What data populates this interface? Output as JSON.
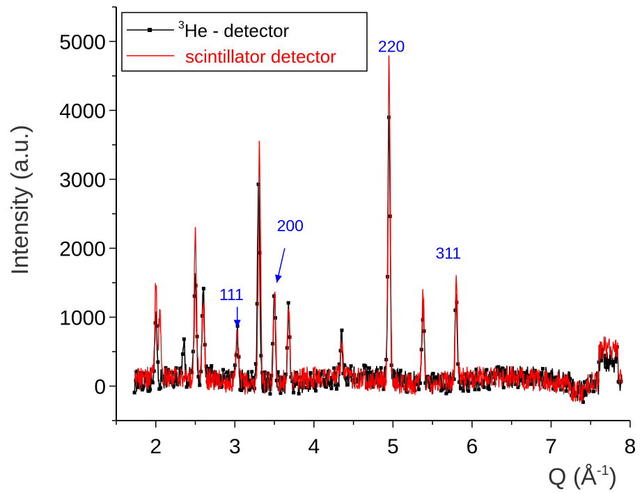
{
  "chart_data": {
    "type": "line",
    "title": "",
    "xlabel": "Q (Å",
    "xlabel_sup": "-1",
    "xlabel_close": ")",
    "ylabel": "Intensity (a.u.)",
    "xlim": [
      1.5,
      8.0
    ],
    "ylim": [
      -500,
      5500
    ],
    "x_ticks": [
      2,
      3,
      4,
      5,
      6,
      7,
      8
    ],
    "y_ticks": [
      0,
      1000,
      2000,
      3000,
      4000,
      5000
    ],
    "grid": false,
    "legend_position": "top-left",
    "series": [
      {
        "name_sup": "3",
        "name": "He - detector",
        "color": "#000000",
        "marker": "square",
        "peaks": [
          [
            2.0,
            1000
          ],
          [
            2.35,
            650
          ],
          [
            2.5,
            1600
          ],
          [
            2.6,
            1300
          ],
          [
            3.03,
            750
          ],
          [
            3.3,
            3050
          ],
          [
            3.5,
            1500
          ],
          [
            3.68,
            1200
          ],
          [
            4.35,
            650
          ],
          [
            4.95,
            4000
          ],
          [
            5.38,
            1200
          ],
          [
            5.8,
            1350
          ]
        ],
        "broad_region": [
          [
            7.6,
            7.85
          ],
          500
        ]
      },
      {
        "name": "scintillator detector",
        "color": "#ff0000",
        "peaks": [
          [
            2.0,
            1450
          ],
          [
            2.05,
            1050
          ],
          [
            2.5,
            2250
          ],
          [
            2.6,
            1150
          ],
          [
            3.03,
            800
          ],
          [
            3.31,
            3550
          ],
          [
            3.5,
            1400
          ],
          [
            3.68,
            1150
          ],
          [
            4.35,
            600
          ],
          [
            4.95,
            4750
          ],
          [
            5.38,
            1400
          ],
          [
            5.8,
            1550
          ]
        ],
        "broad_region": [
          [
            7.6,
            7.85
          ],
          600
        ]
      }
    ],
    "annotations": [
      {
        "text": "111",
        "color": "#0000ff",
        "x": 3.0,
        "y": 1250
      },
      {
        "text": "200",
        "color": "#0000ff",
        "x": 3.7,
        "y": 2250
      },
      {
        "text": "220",
        "color": "#0000ff",
        "x": 4.98,
        "y": 4850
      },
      {
        "text": "311",
        "color": "#0000ff",
        "x": 5.7,
        "y": 1850
      }
    ]
  }
}
